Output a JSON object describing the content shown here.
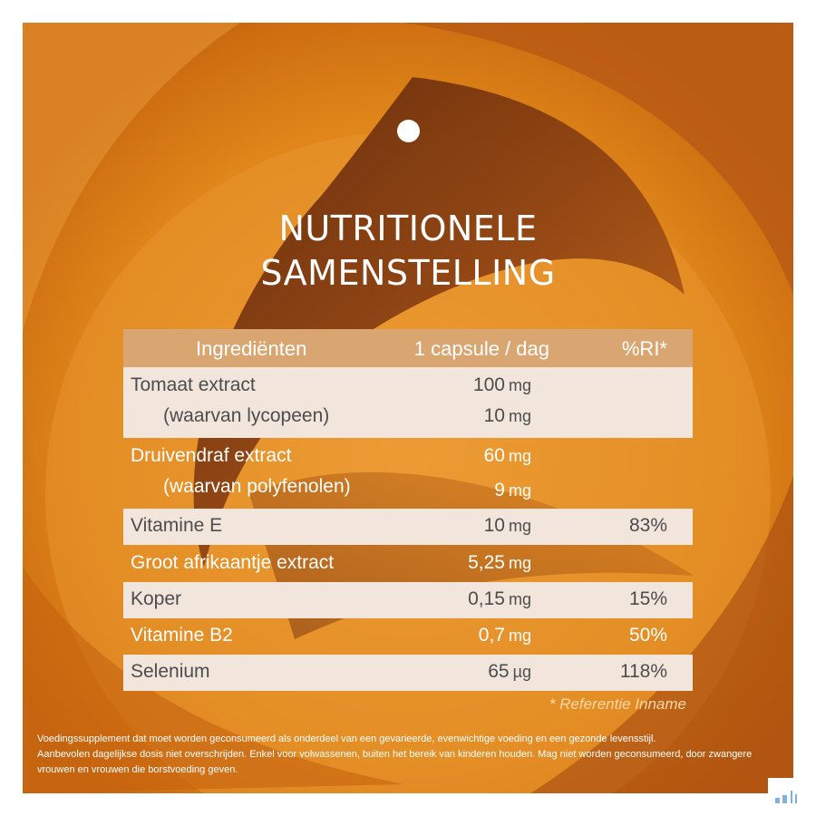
{
  "title": {
    "line1": "NUTRITIONELE",
    "line2": "SAMENSTELLING"
  },
  "table": {
    "headers": {
      "ingredient": "Ingrediënten",
      "amount": "1 capsule / dag",
      "ri": "%RI*"
    },
    "rows": [
      {
        "name": "Tomaat extract",
        "amount": "100",
        "unit": "mg",
        "ri": ""
      },
      {
        "name": "(waarvan lycopeen)",
        "amount": "10",
        "unit": "mg",
        "ri": ""
      },
      {
        "name": "Druivendraf extract",
        "amount": "60",
        "unit": "mg",
        "ri": ""
      },
      {
        "name": "(waarvan polyfenolen)",
        "amount": "9",
        "unit": "mg",
        "ri": ""
      },
      {
        "name": "Vitamine E",
        "amount": "10",
        "unit": "mg",
        "ri": "83%"
      },
      {
        "name": "Groot afrikaantje extract",
        "amount": "5,25",
        "unit": "mg",
        "ri": ""
      },
      {
        "name": "Koper",
        "amount": "0,15",
        "unit": "mg",
        "ri": "15%"
      },
      {
        "name": "Vitamine B2",
        "amount": "0,7",
        "unit": "mg",
        "ri": "50%"
      },
      {
        "name": "Selenium",
        "amount": "65",
        "unit": "µg",
        "ri": "118%"
      }
    ],
    "footnote": "* Referentie Inname"
  },
  "disclaimer": {
    "line1": "Voedingssupplement dat moet worden geconsumeerd als onderdeel van een gevarieerde, evenwichtige voeding en een gezonde levensstijl.",
    "line2": "Aanbevolen dagelijkse dosis niet overschrijden. Enkel voor volwassenen, buiten het bereik van kinderen houden. Mag niet worden geconsumeerd, door zwangere vrouwen en vrouwen die borstvoeding geven."
  },
  "colors": {
    "background": "#e0861a",
    "swirl_dark": "#7a3510",
    "header_row": "#d9a571",
    "light_row": "#f1e5dc"
  }
}
